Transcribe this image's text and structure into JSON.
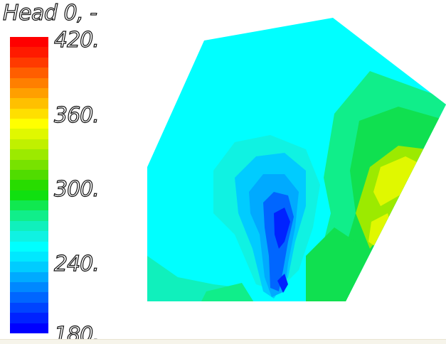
{
  "legend": {
    "title": "Head 0, -",
    "labels": [
      "420.",
      "360.",
      "300.",
      "240.",
      "180."
    ],
    "colors": [
      "#ff0000",
      "#ff1a00",
      "#ff3a00",
      "#ff5e00",
      "#ff7f00",
      "#ff9f00",
      "#ffc000",
      "#ffdf00",
      "#ffff00",
      "#e0f800",
      "#c0f000",
      "#9cea00",
      "#78e200",
      "#50dc00",
      "#28dc00",
      "#10e010",
      "#10e850",
      "#10ee8a",
      "#10f0bc",
      "#10f2e2",
      "#00ffff",
      "#00e8ff",
      "#00ccff",
      "#00aaff",
      "#0088ff",
      "#0066ff",
      "#0044ff",
      "#0022ff",
      "#0000ff"
    ]
  },
  "map": {
    "base_color": "#00ffff",
    "colors": {
      "low_dark": "#0022ff",
      "low": "#0066ff",
      "low_mid": "#00aaff",
      "mid_low": "#00ccff",
      "aqua": "#10f2e2",
      "teal": "#10f0bc",
      "green_light": "#10ee8a",
      "green": "#10e050",
      "green_bright": "#28dc00",
      "yellow_green": "#9cea00",
      "yellow": "#e0f800"
    }
  }
}
